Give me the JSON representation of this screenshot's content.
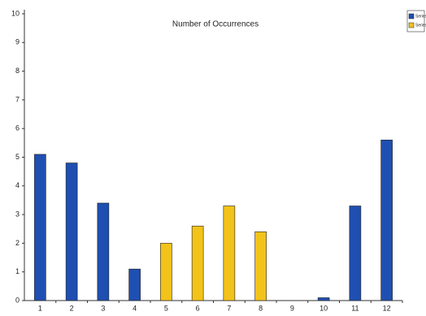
{
  "chart_data": {
    "type": "bar",
    "title": "Number of Occurrences",
    "categories": [
      "1",
      "2",
      "3",
      "4",
      "5",
      "6",
      "7",
      "8",
      "9",
      "10",
      "11",
      "12"
    ],
    "series": [
      {
        "name": "Series1",
        "color": "#1f4fb0",
        "values": [
          5.1,
          4.8,
          3.4,
          1.1,
          null,
          null,
          null,
          null,
          null,
          0.1,
          3.3,
          5.6
        ]
      },
      {
        "name": "Series2",
        "color": "#f2c31a",
        "values": [
          null,
          null,
          null,
          null,
          2.0,
          2.6,
          3.3,
          2.4,
          null,
          null,
          null,
          null
        ]
      }
    ],
    "ylim": [
      0,
      10
    ],
    "yticks": [
      0,
      1,
      2,
      3,
      4,
      5,
      6,
      7,
      8,
      9,
      10
    ],
    "grid": false,
    "legend": "top-right"
  }
}
